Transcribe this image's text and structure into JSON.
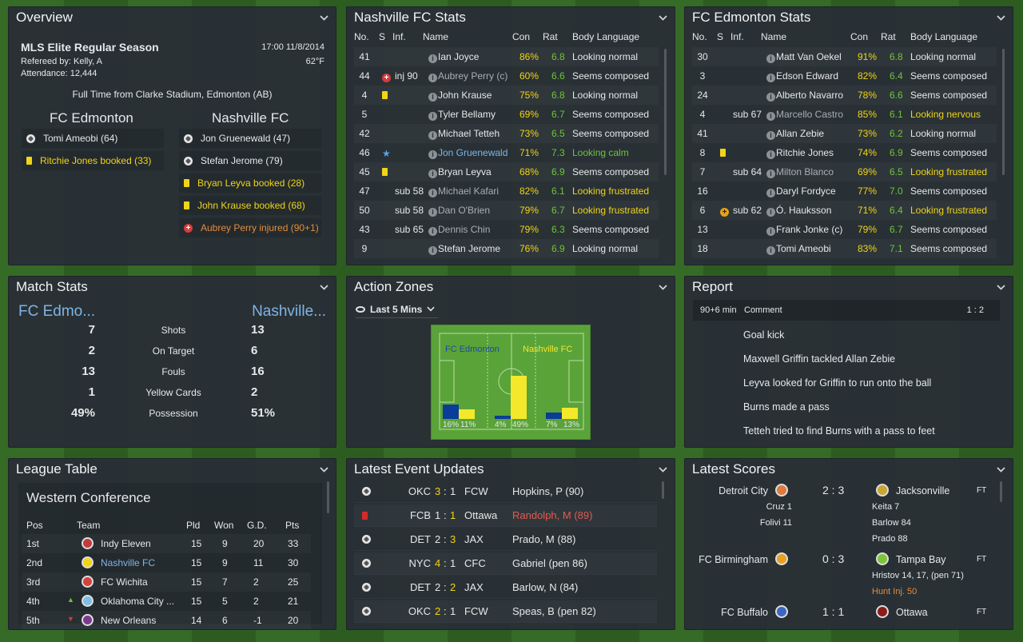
{
  "overview": {
    "title": "Overview",
    "competition": "MLS Elite Regular Season",
    "datetime": "17:00 11/8/2014",
    "referee": "Refereed by: Kelly, A",
    "temp": "62°F",
    "attendance": "Attendance: 12,444",
    "result": "Full Time from Clarke Stadium, Edmonton (AB)",
    "home": "FC Edmonton",
    "away": "Nashville FC",
    "home_events": [
      {
        "icon": "ball",
        "text": "Tomi Ameobi (64)",
        "cls": ""
      },
      {
        "icon": "yellow",
        "text": "Ritchie Jones booked (33)",
        "cls": "yellow"
      }
    ],
    "away_events": [
      {
        "icon": "ball",
        "text": "Jon Gruenewald (47)",
        "cls": ""
      },
      {
        "icon": "ball",
        "text": "Stefan Jerome (79)",
        "cls": ""
      },
      {
        "icon": "yellow",
        "text": "Bryan Leyva booked (28)",
        "cls": "yellow"
      },
      {
        "icon": "yellow",
        "text": "John Krause booked (68)",
        "cls": "yellow"
      },
      {
        "icon": "injury",
        "text": "Aubrey Perry injured (90+1)",
        "cls": "orange"
      }
    ]
  },
  "cols": {
    "no": "No.",
    "s": "S",
    "inf": "Inf.",
    "name": "Name",
    "con": "Con",
    "rat": "Rat",
    "body": "Body Language"
  },
  "nash": {
    "title": "Nashville FC Stats",
    "rows": [
      {
        "no": "41",
        "s": "",
        "inf": "",
        "name": "Ian Joyce",
        "con": "86%",
        "rat": "6.8",
        "body": "Looking normal",
        "nc": "",
        "bc": ""
      },
      {
        "no": "44",
        "s": "inj",
        "inf": "inj 90",
        "name": "Aubrey Perry (c)",
        "con": "60%",
        "rat": "6.6",
        "body": "Seems composed",
        "nc": "grey",
        "bc": ""
      },
      {
        "no": "4",
        "s": "yellow",
        "inf": "",
        "name": "John Krause",
        "con": "75%",
        "rat": "6.8",
        "body": "Looking normal",
        "nc": "",
        "bc": ""
      },
      {
        "no": "5",
        "s": "",
        "inf": "",
        "name": "Tyler Bellamy",
        "con": "69%",
        "rat": "6.7",
        "body": "Seems composed",
        "nc": "",
        "bc": ""
      },
      {
        "no": "42",
        "s": "",
        "inf": "",
        "name": "Michael Tetteh",
        "con": "73%",
        "rat": "6.5",
        "body": "Seems composed",
        "nc": "",
        "bc": ""
      },
      {
        "no": "46",
        "s": "star",
        "inf": "",
        "name": "Jon Gruenewald",
        "con": "71%",
        "rat": "7.3",
        "body": "Looking calm",
        "nc": "blue",
        "bc": "green"
      },
      {
        "no": "45",
        "s": "yellow",
        "inf": "",
        "name": "Bryan Leyva",
        "con": "68%",
        "rat": "6.9",
        "body": "Seems composed",
        "nc": "",
        "bc": ""
      },
      {
        "no": "47",
        "s": "",
        "inf": "sub 58",
        "name": "Michael Kafari",
        "con": "82%",
        "rat": "6.1",
        "body": "Looking frustrated",
        "nc": "grey",
        "bc": "yellow"
      },
      {
        "no": "50",
        "s": "",
        "inf": "sub 58",
        "name": "Dan O'Brien",
        "con": "79%",
        "rat": "6.7",
        "body": "Looking frustrated",
        "nc": "grey",
        "bc": "yellow"
      },
      {
        "no": "43",
        "s": "",
        "inf": "sub 65",
        "name": "Dennis Chin",
        "con": "79%",
        "rat": "6.3",
        "body": "Seems composed",
        "nc": "grey",
        "bc": ""
      },
      {
        "no": "9",
        "s": "",
        "inf": "",
        "name": "Stefan Jerome",
        "con": "76%",
        "rat": "6.9",
        "body": "Looking normal",
        "nc": "",
        "bc": ""
      }
    ]
  },
  "edm": {
    "title": "FC Edmonton Stats",
    "rows": [
      {
        "no": "30",
        "s": "",
        "inf": "",
        "name": "Matt Van Oekel",
        "con": "91%",
        "rat": "6.8",
        "body": "Looking normal",
        "nc": "",
        "bc": ""
      },
      {
        "no": "3",
        "s": "",
        "inf": "",
        "name": "Edson Edward",
        "con": "82%",
        "rat": "6.4",
        "body": "Seems composed",
        "nc": "",
        "bc": ""
      },
      {
        "no": "24",
        "s": "",
        "inf": "",
        "name": "Alberto Navarro",
        "con": "78%",
        "rat": "6.6",
        "body": "Seems composed",
        "nc": "",
        "bc": ""
      },
      {
        "no": "4",
        "s": "",
        "inf": "sub 67",
        "name": "Marcello Castro",
        "con": "85%",
        "rat": "6.1",
        "body": "Looking nervous",
        "nc": "grey",
        "bc": "yellow"
      },
      {
        "no": "41",
        "s": "",
        "inf": "",
        "name": "Allan Zebie",
        "con": "73%",
        "rat": "6.2",
        "body": "Looking normal",
        "nc": "",
        "bc": ""
      },
      {
        "no": "8",
        "s": "yellow",
        "inf": "",
        "name": "Ritchie Jones",
        "con": "74%",
        "rat": "6.9",
        "body": "Seems composed",
        "nc": "",
        "bc": ""
      },
      {
        "no": "7",
        "s": "",
        "inf": "sub 64",
        "name": "Milton Blanco",
        "con": "69%",
        "rat": "6.5",
        "body": "Looking frustrated",
        "nc": "grey",
        "bc": "yellow"
      },
      {
        "no": "16",
        "s": "",
        "inf": "",
        "name": "Daryl Fordyce",
        "con": "77%",
        "rat": "7.0",
        "body": "Seems composed",
        "nc": "",
        "bc": ""
      },
      {
        "no": "6",
        "s": "subin",
        "inf": "sub 62",
        "name": "Ó. Hauksson",
        "con": "71%",
        "rat": "6.4",
        "body": "Looking frustrated",
        "nc": "",
        "bc": "yellow"
      },
      {
        "no": "13",
        "s": "",
        "inf": "",
        "name": "Frank Jonke (c)",
        "con": "79%",
        "rat": "6.7",
        "body": "Seems composed",
        "nc": "",
        "bc": ""
      },
      {
        "no": "18",
        "s": "",
        "inf": "",
        "name": "Tomi Ameobi",
        "con": "83%",
        "rat": "7.1",
        "body": "Seems composed",
        "nc": "",
        "bc": ""
      }
    ]
  },
  "match": {
    "title": "Match Stats",
    "home": "FC Edmo...",
    "away": "Nashville...",
    "rows": [
      {
        "h": "7",
        "label": "Shots",
        "a": "13"
      },
      {
        "h": "2",
        "label": "On Target",
        "a": "6"
      },
      {
        "h": "13",
        "label": "Fouls",
        "a": "16"
      },
      {
        "h": "1",
        "label": "Yellow Cards",
        "a": "2"
      },
      {
        "h": "49%",
        "label": "Possession",
        "a": "51%"
      }
    ]
  },
  "zones": {
    "title": "Action Zones",
    "filter": "Last 5 Mins",
    "home": "FC Edmonton",
    "away": "Nashville FC",
    "bars": [
      {
        "h": 16,
        "a": 11
      },
      {
        "h": 4,
        "a": 49
      },
      {
        "h": 7,
        "a": 13
      }
    ],
    "labels": [
      "16%",
      "11%",
      "4%",
      "49%",
      "7%",
      "13%"
    ]
  },
  "report": {
    "title": "Report",
    "time": "90+6 min",
    "comment": "Comment",
    "score": "1 : 2",
    "lines": [
      "Goal kick",
      "Maxwell Griffin tackled Allan Zebie",
      "Leyva looked for Griffin to run onto the ball",
      "Burns made a pass",
      "Tetteh tried to find Burns with a pass to feet"
    ]
  },
  "league": {
    "title": "League Table",
    "conf": "Western Conference",
    "head": {
      "pos": "Pos",
      "team": "Team",
      "pld": "Pld",
      "won": "Won",
      "gd": "G.D.",
      "pts": "Pts"
    },
    "rows": [
      {
        "pos": "1st",
        "team": "Indy Eleven",
        "pld": "15",
        "won": "9",
        "gd": "20",
        "pts": "33",
        "mv": "",
        "hl": false
      },
      {
        "pos": "2nd",
        "team": "Nashville FC",
        "pld": "15",
        "won": "9",
        "gd": "11",
        "pts": "30",
        "mv": "",
        "hl": true
      },
      {
        "pos": "3rd",
        "team": "FC Wichita",
        "pld": "15",
        "won": "7",
        "gd": "2",
        "pts": "25",
        "mv": "",
        "hl": false
      },
      {
        "pos": "4th",
        "team": "Oklahoma City ...",
        "pld": "15",
        "won": "5",
        "gd": "2",
        "pts": "21",
        "mv": "up",
        "hl": false
      },
      {
        "pos": "5th",
        "team": "New Orleans",
        "pld": "14",
        "won": "6",
        "gd": "-1",
        "pts": "20",
        "mv": "down",
        "hl": false
      }
    ]
  },
  "events": {
    "title": "Latest Event Updates",
    "rows": [
      {
        "icon": "ball",
        "h": "OKC",
        "hs": "3",
        "as": "1",
        "a": "FCW",
        "txt": "Hopkins, P (90)",
        "red": false,
        "hy": true,
        "ay": false
      },
      {
        "icon": "red",
        "h": "FCB",
        "hs": "1",
        "as": "1",
        "a": "Ottawa",
        "txt": "Randolph, M (89)",
        "red": true,
        "hy": false,
        "ay": true
      },
      {
        "icon": "ball",
        "h": "DET",
        "hs": "2",
        "as": "3",
        "a": "JAX",
        "txt": "Prado, M (88)",
        "red": false,
        "hy": false,
        "ay": true
      },
      {
        "icon": "ball",
        "h": "NYC",
        "hs": "4",
        "as": "1",
        "a": "CFC",
        "txt": "Gabriel (pen 86)",
        "red": false,
        "hy": true,
        "ay": false
      },
      {
        "icon": "ball",
        "h": "DET",
        "hs": "2",
        "as": "2",
        "a": "JAX",
        "txt": "Barlow, N (84)",
        "red": false,
        "hy": false,
        "ay": true
      },
      {
        "icon": "ball",
        "h": "OKC",
        "hs": "2",
        "as": "1",
        "a": "FCW",
        "txt": "Speas, B (pen 82)",
        "red": false,
        "hy": true,
        "ay": false
      }
    ]
  },
  "scores": {
    "title": "Latest Scores",
    "games": [
      {
        "h": "Detroit City",
        "a": "Jacksonville",
        "score": "2 : 3",
        "ft": "FT",
        "hs": [
          "Cruz 1",
          "Folivi 11"
        ],
        "as": [
          "Keita 7",
          "Barlow 84",
          "Prado 88"
        ],
        "inj": ""
      },
      {
        "h": "FC Birmingham",
        "a": "Tampa Bay",
        "score": "0 : 3",
        "ft": "FT",
        "hs": [],
        "as": [
          "Hristov 14, 17, (pen 71)"
        ],
        "inj": "Hunt Inj. 50"
      },
      {
        "h": "FC Buffalo",
        "a": "Ottawa",
        "score": "1 : 1",
        "ft": "FT",
        "hs": [],
        "as": [],
        "inj": ""
      }
    ]
  }
}
